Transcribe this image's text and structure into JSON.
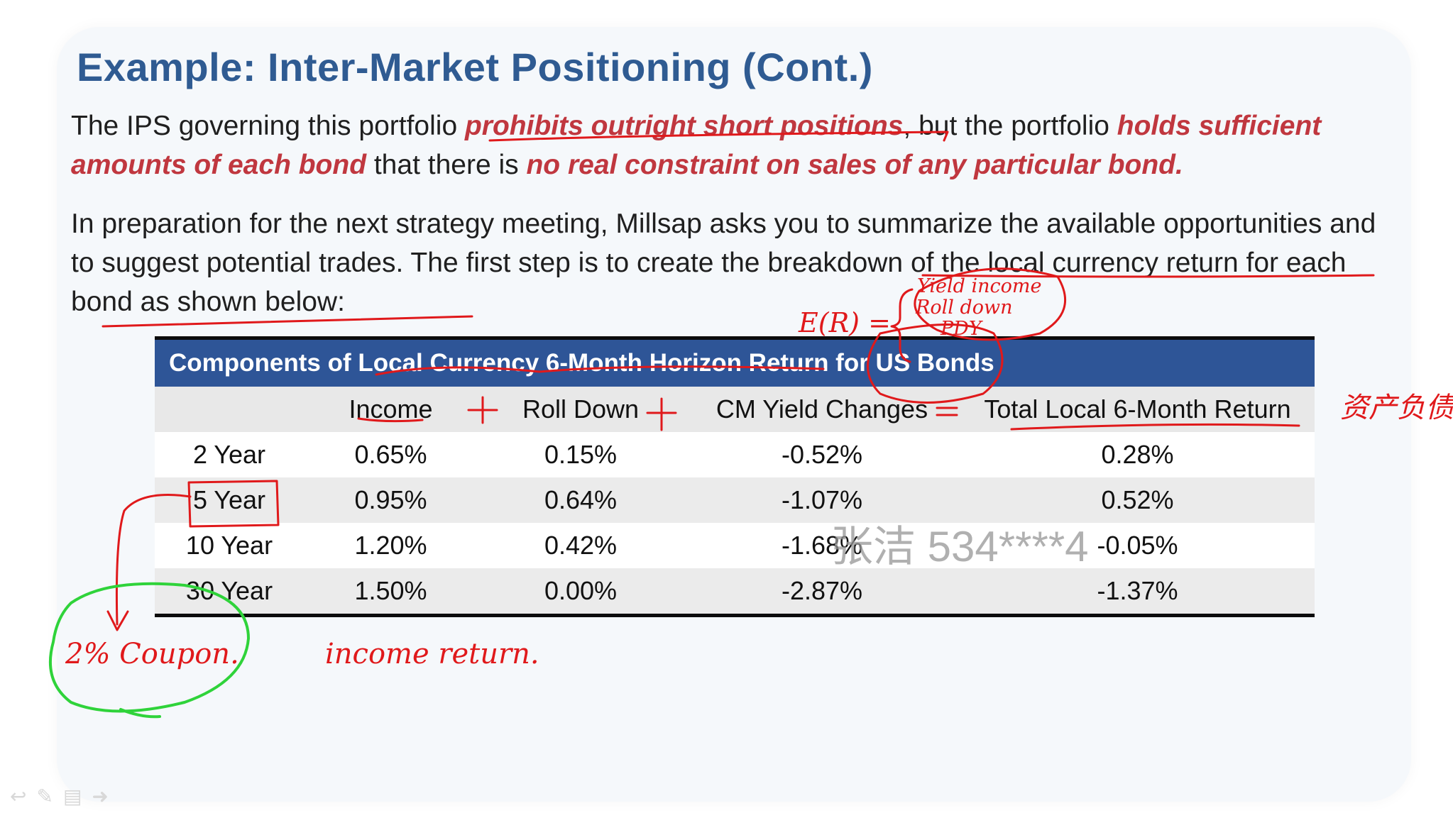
{
  "slide": {
    "title": "Example: Inter-Market Positioning (Cont.)",
    "paragraph1": {
      "t1": "The IPS governing this portfolio ",
      "e1": "prohibits outright short positions",
      "t2": ", but the portfolio ",
      "e2": "holds sufficient amounts of each bond",
      "t3": " that there is ",
      "e3": "no real constraint on sales of any particular bond."
    },
    "paragraph2": "In preparation for the next strategy meeting, Millsap asks you to summarize the available opportunities and to suggest potential trades. The first step is to create the breakdown of the local currency return for each bond as shown below:"
  },
  "table": {
    "caption": "Components of Local Currency 6-Month Horizon Return for US Bonds",
    "headers": [
      "",
      "Income",
      "Roll Down",
      "CM Yield Changes",
      "Total Local 6-Month Return"
    ],
    "rows": [
      [
        "2 Year",
        "0.65%",
        "0.15%",
        "-0.52%",
        "0.28%"
      ],
      [
        "5 Year",
        "0.95%",
        "0.64%",
        "-1.07%",
        "0.52%"
      ],
      [
        "10 Year",
        "1.20%",
        "0.42%",
        "-1.68%",
        "-0.05%"
      ],
      [
        "30 Year",
        "1.50%",
        "0.00%",
        "-2.87%",
        "-1.37%"
      ]
    ]
  },
  "watermark": "张洁 534****4",
  "annotations": {
    "er": "E(R) =",
    "yield_income": "Yield income",
    "roll_down": "Roll down",
    "pdy": "PDY",
    "plus": "+",
    "equals": "=",
    "coupon": "2% Coupon.",
    "income_return": "income return.",
    "side_note": "资产负债."
  },
  "colors": {
    "title": "#2f5b92",
    "emphasis": "#c0373f",
    "caption_bg": "#2e5597",
    "ink_red": "#e0191b",
    "ink_green": "#2fd33a"
  }
}
